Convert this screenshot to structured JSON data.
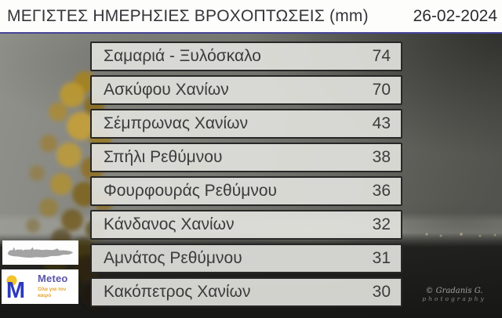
{
  "header": {
    "title": "ΜΕΓΙΣΤΕΣ ΗΜΕΡΗΣΙΕΣ ΒΡΟΧΟΠΤΩΣΕΙΣ (mm)",
    "date": "26-02-2024"
  },
  "chart_data": {
    "type": "table",
    "title": "ΜΕΓΙΣΤΕΣ ΗΜΕΡΗΣΙΕΣ ΒΡΟΧΟΠΤΩΣΕΙΣ (mm)",
    "date": "26-02-2024",
    "unit": "mm",
    "categories": [
      "Σαμαριά - Ξυλόσκαλο",
      "Ασκύφου Χανίων",
      "Σέμπρωνας Χανίων",
      "Σπήλι Ρεθύμνου",
      "Φουρφουράς Ρεθύμνου",
      "Κάνδανος Χανίων",
      "Αμνάτος Ρεθύμνου",
      "Κακόπετρος Χανίων"
    ],
    "values": [
      74,
      70,
      43,
      38,
      36,
      32,
      31,
      30
    ],
    "layout": "ranked list over photo background, values right-aligned"
  },
  "logo": {
    "brand": "Meteo",
    "tagline": "Όλα για τον καιρό",
    "map_icon": "crete-map-silhouette",
    "mark_icon": "meteo-sun-m-logo"
  },
  "watermark": {
    "line1": "© Gradanis G.",
    "line2": "photography"
  },
  "colors": {
    "header_bg": "#fdfdfc",
    "separator_navy": "#44449a",
    "row_fill": "#e0e0dc",
    "row_border": "#272727",
    "row_text": "#3b3b3b",
    "logo_blue": "#2b3abd",
    "logo_sun_yellow": "#f2c32b",
    "brand_purple": "#5c55a8",
    "tagline_orange": "#e2a42f",
    "map_gray": "#a3a3a3"
  }
}
